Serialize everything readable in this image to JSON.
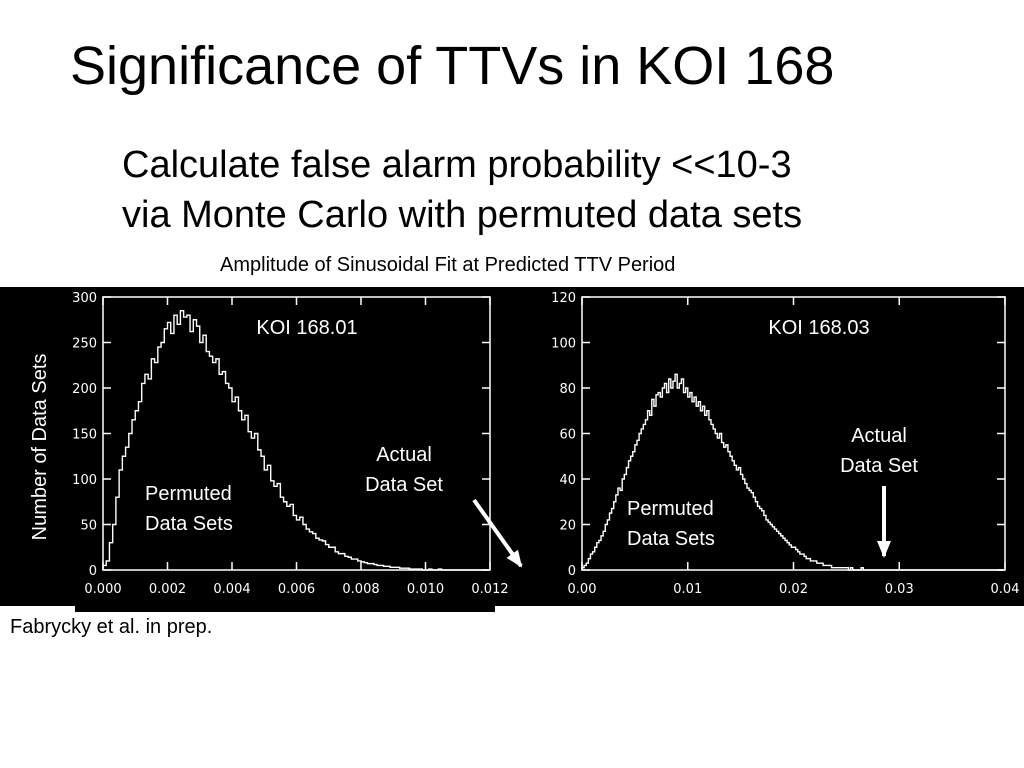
{
  "slide": {
    "title": "Significance of TTVs in KOI 168",
    "subtitle_lines": [
      "Calculate false alarm probability <<10-3",
      "via Monte Carlo with permuted data sets"
    ],
    "x_caption": "Amplitude of Sinusoidal Fit at Predicted TTV Period",
    "credit": "Fabrycky et al. in prep.",
    "y_axis_label": "Number of Data Sets"
  },
  "colors": {
    "panel_background": "#000000",
    "ink": "#ffffff",
    "page_background": "#ffffff",
    "text": "#000000"
  },
  "chart_data": [
    {
      "type": "histogram",
      "title": "KOI 168.01",
      "xlabel": "Amplitude of Sinusoidal Fit at Predicted TTV Period",
      "ylabel": "Number of Data Sets",
      "xlim": [
        0,
        0.012
      ],
      "ylim": [
        0,
        300
      ],
      "x_ticks": [
        "0.000",
        "0.002",
        "0.004",
        "0.006",
        "0.008",
        "0.010",
        "0.012"
      ],
      "y_ticks": [
        "0",
        "50",
        "100",
        "150",
        "200",
        "250",
        "300"
      ],
      "bin_start": 0,
      "bin_width": 0.0001,
      "counts": [
        5,
        10,
        30,
        50,
        80,
        110,
        125,
        135,
        150,
        165,
        175,
        185,
        205,
        215,
        210,
        232,
        228,
        245,
        250,
        265,
        272,
        260,
        280,
        270,
        285,
        278,
        280,
        262,
        275,
        268,
        250,
        258,
        240,
        235,
        228,
        232,
        215,
        218,
        205,
        200,
        185,
        190,
        175,
        165,
        170,
        152,
        145,
        150,
        132,
        125,
        110,
        115,
        98,
        92,
        95,
        80,
        75,
        70,
        72,
        60,
        55,
        58,
        50,
        45,
        42,
        40,
        35,
        33,
        32,
        28,
        25,
        25,
        20,
        18,
        18,
        15,
        14,
        12,
        12,
        10,
        9,
        8,
        7,
        7,
        6,
        5,
        5,
        4,
        4,
        3,
        3,
        3,
        2,
        2,
        2,
        1,
        1,
        1,
        1,
        0,
        0,
        1,
        0,
        0,
        1,
        0,
        0,
        0,
        0,
        0,
        0,
        0,
        0,
        0,
        0,
        0,
        0,
        0,
        0,
        0
      ],
      "annotations": [
        {
          "text": "Permuted Data Sets",
          "lines": [
            "Permuted",
            "Data Sets"
          ]
        },
        {
          "text": "Actual Data Set",
          "lines": [
            "Actual",
            "Data Set"
          ],
          "x": 0.0125
        }
      ]
    },
    {
      "type": "histogram",
      "title": "KOI 168.03",
      "xlabel": "Amplitude of Sinusoidal Fit at Predicted TTV Period",
      "ylabel": "Number of Data Sets",
      "xlim": [
        0,
        0.04
      ],
      "ylim": [
        0,
        120
      ],
      "x_ticks": [
        "0.00",
        "0.01",
        "0.02",
        "0.03",
        "0.04"
      ],
      "y_ticks": [
        "0",
        "20",
        "40",
        "60",
        "80",
        "100",
        "120"
      ],
      "bin_start": 0,
      "bin_width": 0.0002,
      "counts": [
        1,
        2,
        3,
        5,
        7,
        8,
        10,
        12,
        13,
        15,
        17,
        20,
        22,
        25,
        27,
        30,
        33,
        36,
        35,
        40,
        42,
        45,
        48,
        50,
        52,
        55,
        57,
        60,
        62,
        64,
        66,
        70,
        68,
        75,
        72,
        77,
        78,
        76,
        80,
        82,
        78,
        84,
        80,
        83,
        86,
        80,
        82,
        84,
        78,
        80,
        76,
        78,
        74,
        76,
        72,
        74,
        70,
        72,
        68,
        70,
        66,
        64,
        62,
        60,
        58,
        60,
        56,
        54,
        55,
        52,
        50,
        48,
        46,
        44,
        45,
        42,
        40,
        38,
        36,
        35,
        34,
        32,
        30,
        28,
        27,
        26,
        24,
        22,
        21,
        20,
        19,
        18,
        17,
        16,
        15,
        14,
        13,
        12,
        11,
        10,
        10,
        9,
        8,
        7,
        7,
        6,
        5,
        5,
        4,
        4,
        4,
        3,
        3,
        3,
        2,
        2,
        2,
        2,
        1,
        1,
        1,
        1,
        1,
        1,
        1,
        1,
        0,
        1,
        0,
        0,
        0,
        0,
        1,
        0,
        0,
        0,
        0,
        0,
        0,
        0,
        0,
        0,
        0,
        0,
        0,
        0,
        0,
        0,
        0,
        0,
        0,
        0,
        0,
        0,
        0,
        0,
        0,
        0,
        0,
        0,
        0,
        0,
        0,
        0,
        0,
        0,
        0,
        0,
        0,
        0,
        0,
        0,
        0,
        0,
        0,
        0,
        0,
        0,
        0,
        0,
        0,
        0,
        0,
        0,
        0,
        0,
        0,
        0,
        0,
        0,
        0,
        0,
        0,
        0,
        0,
        0,
        0,
        0,
        0,
        0
      ],
      "annotations": [
        {
          "text": "Permuted Data Sets",
          "lines": [
            "Permuted",
            "Data Sets"
          ]
        },
        {
          "text": "Actual Data Set",
          "lines": [
            "Actual",
            "Data Set"
          ],
          "x": 0.029
        }
      ]
    }
  ]
}
